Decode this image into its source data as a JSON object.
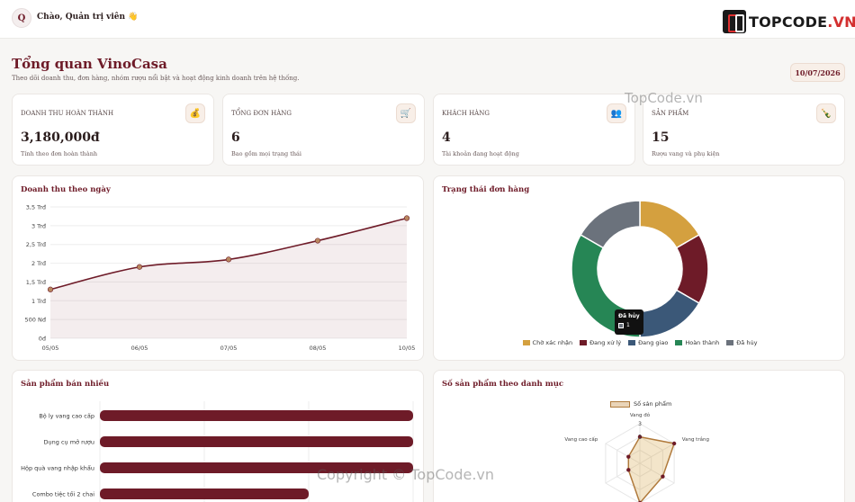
{
  "header": {
    "avatar_letter": "Q",
    "greeting": "Chào, Quản trị viên 👋",
    "brand_main": "TOPCODE",
    "brand_suffix": ".VN"
  },
  "page": {
    "title": "Tổng quan VinoCasa",
    "subtitle": "Theo dõi doanh thu, đơn hàng, nhóm rượu nổi bật và hoạt động kinh doanh trên hệ thống.",
    "date": "10/07/2026"
  },
  "stats": [
    {
      "label": "Doanh thu hoàn thành",
      "value": "3,180,000đ",
      "note": "Tính theo đơn hoàn thành",
      "icon": "money-bag-icon",
      "glyph": "💰"
    },
    {
      "label": "Tổng đơn hàng",
      "value": "6",
      "note": "Bao gồm mọi trạng thái",
      "icon": "cart-icon",
      "glyph": "🛒"
    },
    {
      "label": "Khách hàng",
      "value": "4",
      "note": "Tài khoản đang hoạt động",
      "icon": "users-icon",
      "glyph": "👥"
    },
    {
      "label": "Sản phẩm",
      "value": "15",
      "note": "Rượu vang và phụ kiện",
      "icon": "wine-bottle-icon",
      "glyph": "🍾"
    }
  ],
  "panels": {
    "revenue_title": "Doanh thu theo ngày",
    "status_title": "Trạng thái đơn hàng",
    "top_products_title": "Sản phẩm bán nhiều",
    "category_title": "Số sản phẩm theo danh mục"
  },
  "tooltip": {
    "title": "Đã hủy",
    "value": "1"
  },
  "watermarks": {
    "top": "TopCode.vn",
    "bottom": "Copyright © TopCode.vn"
  },
  "colors": {
    "wine": "#6e1b28",
    "gold": "#d4a03f",
    "navy": "#3b5878",
    "green": "#268655",
    "gray": "#6b727c"
  },
  "chart_data": [
    {
      "type": "line",
      "x": [
        "05/05",
        "06/05",
        "07/05",
        "08/05",
        "10/05"
      ],
      "values": [
        1.3,
        1.9,
        2.1,
        2.6,
        3.2
      ],
      "yticks": [
        "0đ",
        "500 Nđ",
        "1 Trđ",
        "1,5 Trđ",
        "2 Trđ",
        "2,5 Trđ",
        "3 Trđ",
        "3,5 Trđ"
      ],
      "ylim": [
        0,
        3.5
      ],
      "unit": "Trđ"
    },
    {
      "type": "pie",
      "categories": [
        "Chờ xác nhận",
        "Đang xử lý",
        "Đang giao",
        "Hoàn thành",
        "Đã hủy"
      ],
      "values": [
        1,
        1,
        1,
        2,
        1
      ],
      "colors": [
        "#d4a03f",
        "#6e1b28",
        "#3b5878",
        "#268655",
        "#6b727c"
      ]
    },
    {
      "type": "bar",
      "orientation": "horizontal",
      "categories": [
        "Bộ ly vang cao cấp",
        "Dụng cụ mở rượu",
        "Hộp quà vang nhập khẩu",
        "Combo tiệc tối 2 chai"
      ],
      "values": [
        3,
        3,
        3,
        2
      ],
      "xlim": [
        0,
        3
      ]
    },
    {
      "type": "radar",
      "series": [
        {
          "name": "Số sản phẩm",
          "values": [
            2,
            3,
            2,
            3,
            1,
            1
          ]
        }
      ],
      "categories": [
        "Vang đỏ",
        "Vang trắng",
        "",
        "",
        "",
        "Vang cao cấp"
      ],
      "ticks": [
        "2",
        "3"
      ],
      "rmax": 3
    }
  ]
}
